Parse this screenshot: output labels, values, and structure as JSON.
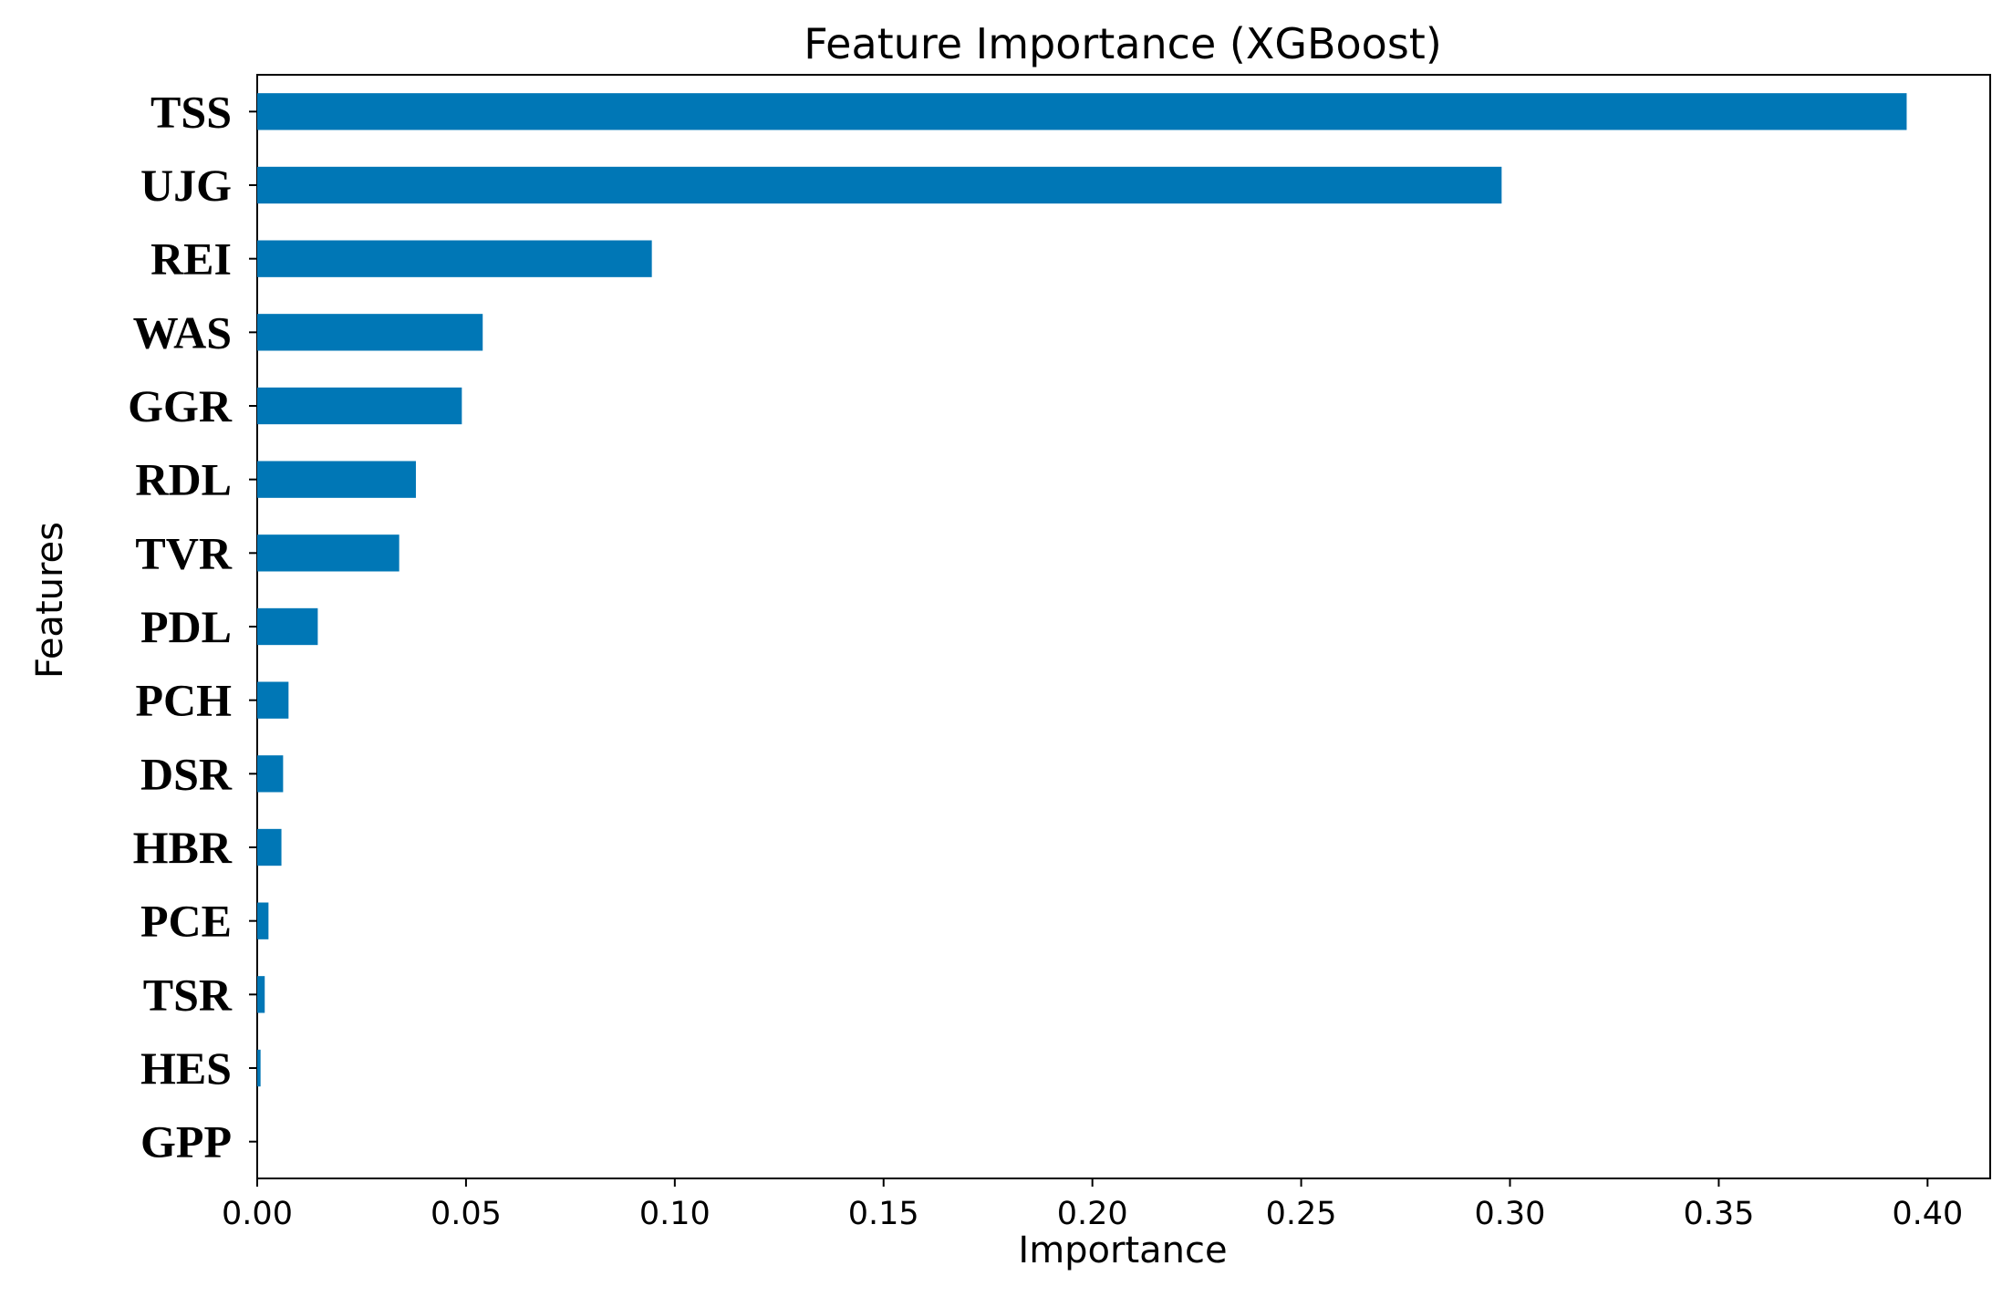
{
  "chart_data": {
    "type": "bar",
    "orientation": "horizontal",
    "title": "Feature Importance (XGBoost)",
    "xlabel": "Importance",
    "ylabel": "Features",
    "categories": [
      "TSS",
      "UJG",
      "REI",
      "WAS",
      "GGR",
      "RDL",
      "TVR",
      "PDL",
      "PCH",
      "DSR",
      "HBR",
      "PCE",
      "TSR",
      "HES",
      "GPP"
    ],
    "values": [
      0.395,
      0.298,
      0.0945,
      0.054,
      0.049,
      0.038,
      0.034,
      0.0145,
      0.0075,
      0.0062,
      0.0058,
      0.0027,
      0.0018,
      0.0008,
      0.0
    ],
    "xlim": [
      0,
      0.415
    ],
    "xticks": [
      "0.00",
      "0.05",
      "0.10",
      "0.15",
      "0.20",
      "0.25",
      "0.30",
      "0.35",
      "0.40"
    ],
    "xtick_values": [
      0,
      0.05,
      0.1,
      0.15,
      0.2,
      0.25,
      0.3,
      0.35,
      0.4
    ],
    "grid": false,
    "bar_color": "#0077b6"
  }
}
